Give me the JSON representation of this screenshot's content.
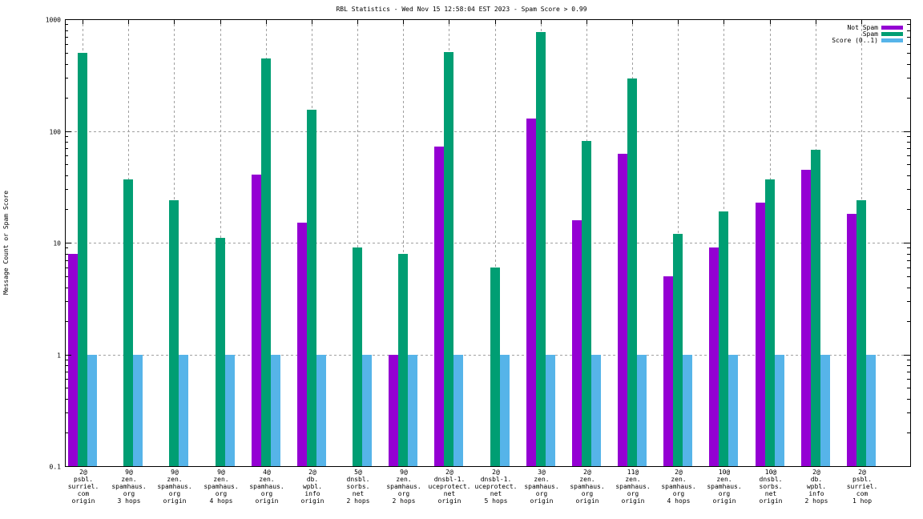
{
  "chart_data": {
    "type": "bar",
    "title": "RBL Statistics - Wed Nov 15 12:58:04 EST 2023 - Spam Score > 0.99",
    "ylabel": "Message Count or Spam Score",
    "xlabel": "",
    "yscale": "log",
    "ylim": [
      0.1,
      1000
    ],
    "yticks": [
      {
        "value": 1000,
        "label": "1000"
      },
      {
        "value": 100,
        "label": "100"
      },
      {
        "value": 10,
        "label": "10"
      },
      {
        "value": 1,
        "label": "1"
      },
      {
        "value": 0.1,
        "label": "0.1"
      }
    ],
    "grid": true,
    "legend_position": "top-right",
    "categories": [
      [
        "2@",
        "psbl.",
        "surriel.",
        "com",
        "origin"
      ],
      [
        "9@",
        "zen.",
        "spamhaus.",
        "org",
        "3 hops"
      ],
      [
        "9@",
        "zen.",
        "spamhaus.",
        "org",
        "origin"
      ],
      [
        "9@",
        "zen.",
        "spamhaus.",
        "org",
        "4 hops"
      ],
      [
        "4@",
        "zen.",
        "spamhaus.",
        "org",
        "origin"
      ],
      [
        "2@",
        "db.",
        "wpbl.",
        "info",
        "origin"
      ],
      [
        "5@",
        "dnsbl.",
        "sorbs.",
        "net",
        "2 hops"
      ],
      [
        "9@",
        "zen.",
        "spamhaus.",
        "org",
        "2 hops"
      ],
      [
        "2@",
        "dnsbl-1.",
        "uceprotect.",
        "net",
        "origin"
      ],
      [
        "2@",
        "dnsbl-1.",
        "uceprotect.",
        "net",
        "5 hops"
      ],
      [
        "3@",
        "zen.",
        "spamhaus.",
        "org",
        "origin"
      ],
      [
        "2@",
        "zen.",
        "spamhaus.",
        "org",
        "origin"
      ],
      [
        "11@",
        "zen.",
        "spamhaus.",
        "org",
        "origin"
      ],
      [
        "2@",
        "zen.",
        "spamhaus.",
        "org",
        "4 hops"
      ],
      [
        "10@",
        "zen.",
        "spamhaus.",
        "org",
        "origin"
      ],
      [
        "10@",
        "dnsbl.",
        "sorbs.",
        "net",
        "origin"
      ],
      [
        "2@",
        "db.",
        "wpbl.",
        "info",
        "2 hops"
      ],
      [
        "2@",
        "psbl.",
        "surriel.",
        "com",
        "1 hop"
      ]
    ],
    "series": [
      {
        "name": "Not Spam",
        "color": "#9400d3",
        "values": [
          8,
          0,
          0,
          0,
          41,
          15,
          0,
          1,
          73,
          0,
          130,
          16,
          62,
          5,
          9,
          23,
          45,
          18
        ]
      },
      {
        "name": "Spam",
        "color": "#009e73",
        "values": [
          496,
          37,
          24,
          11,
          449,
          154,
          9,
          8,
          512,
          6,
          774,
          82,
          297,
          12,
          19,
          37,
          68,
          24
        ]
      },
      {
        "name": "Score (0..1)",
        "color": "#56b4e9",
        "values": [
          1,
          1,
          1,
          1,
          1,
          1,
          1,
          1,
          1,
          1,
          1,
          1,
          1,
          1,
          1,
          1,
          1,
          1
        ]
      }
    ]
  }
}
